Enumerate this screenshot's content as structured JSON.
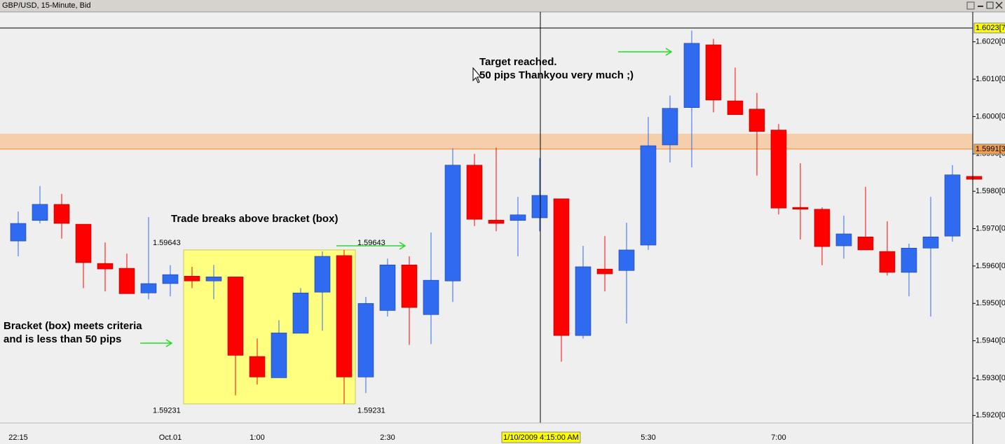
{
  "chart_data": {
    "type": "candlestick",
    "title": "GBP/USD, 15-Minute, Bid",
    "categories": [
      "22:15",
      null,
      null,
      null,
      null,
      null,
      null,
      "Oct.01",
      null,
      null,
      null,
      "1:00",
      null,
      null,
      null,
      null,
      null,
      "2:30",
      null,
      null,
      null,
      null,
      null,
      null,
      null,
      null,
      null,
      null,
      null,
      "5:30",
      null,
      null,
      null,
      null,
      null,
      "7:00",
      null,
      null,
      null,
      null,
      null,
      null,
      null,
      null,
      null
    ],
    "open": [
      1.59667,
      1.59722,
      1.59765,
      1.59712,
      1.59607,
      1.59594,
      1.59528,
      1.59553,
      1.59573,
      1.5956,
      1.59571,
      1.59358,
      1.59301,
      1.5942,
      1.5953,
      1.59628,
      1.59303,
      1.59481,
      1.59603,
      1.5947,
      1.5956,
      1.5987,
      1.59723,
      1.59722,
      1.59729,
      1.5978,
      1.59414,
      1.59592,
      1.59588,
      1.59656,
      1.59924,
      1.60024,
      1.60192,
      1.60042,
      1.6002,
      1.59964,
      1.59757,
      1.59752,
      1.59654,
      1.59678,
      1.59639,
      1.59583,
      1.59648,
      1.5968,
      1.5984
    ],
    "high": [
      1.59746,
      1.59814,
      1.59793,
      1.59712,
      1.59663,
      1.59633,
      1.59731,
      1.59602,
      1.59598,
      1.59603,
      1.59571,
      1.59406,
      1.59455,
      1.59541,
      1.59639,
      1.59643,
      1.59517,
      1.5962,
      1.59626,
      1.5969,
      1.59915,
      1.599,
      1.59917,
      1.59785,
      1.59889,
      1.5978,
      1.59654,
      1.5968,
      1.59716,
      1.59999,
      1.60056,
      1.6023,
      1.60208,
      1.60131,
      1.60063,
      1.5998,
      1.59875,
      1.59757,
      1.59735,
      1.59812,
      1.5972,
      1.5966,
      1.59785,
      1.5987,
      1.5984
    ],
    "low": [
      1.59626,
      1.59714,
      1.59673,
      1.59541,
      1.59532,
      1.59526,
      1.59511,
      1.59519,
      1.59541,
      1.59511,
      1.59254,
      1.59283,
      1.59301,
      1.5942,
      1.59427,
      1.59231,
      1.5926,
      1.59465,
      1.59389,
      1.59391,
      1.59504,
      1.59707,
      1.59693,
      1.59626,
      1.59693,
      1.59344,
      1.59406,
      1.59532,
      1.59446,
      1.59643,
      1.59877,
      1.59864,
      1.60011,
      1.60005,
      1.59842,
      1.59738,
      1.59671,
      1.59602,
      1.5962,
      1.59643,
      1.59575,
      1.59519,
      1.59465,
      1.59665,
      1.59832
    ],
    "close": [
      1.59714,
      1.59765,
      1.59714,
      1.59609,
      1.59592,
      1.59526,
      1.59553,
      1.59577,
      1.5956,
      1.59571,
      1.59361,
      1.59303,
      1.59421,
      1.59528,
      1.59626,
      1.59303,
      1.595,
      1.59603,
      1.59489,
      1.59562,
      1.5987,
      1.59725,
      1.59714,
      1.59737,
      1.59789,
      1.59414,
      1.59598,
      1.59579,
      1.59643,
      1.59922,
      1.60022,
      1.60196,
      1.60044,
      1.60005,
      1.5996,
      1.59755,
      1.59752,
      1.59652,
      1.59686,
      1.59643,
      1.59583,
      1.59648,
      1.59678,
      1.59844,
      1.59832
    ],
    "up_color": "#2f6bf0",
    "down_color": "#ff0000",
    "ylim": [
      1.5918,
      1.6028
    ],
    "yticks": [
      {
        "value": 1.592,
        "label": "1.5920[0]"
      },
      {
        "value": 1.593,
        "label": "1.5930[0]"
      },
      {
        "value": 1.594,
        "label": "1.5940[0]"
      },
      {
        "value": 1.595,
        "label": "1.5950[0]"
      },
      {
        "value": 1.596,
        "label": "1.5960[0]"
      },
      {
        "value": 1.597,
        "label": "1.5970[0]"
      },
      {
        "value": 1.598,
        "label": "1.5980[0]"
      },
      {
        "value": 1.599,
        "label": "1.5990[0]"
      },
      {
        "value": 1.6,
        "label": "1.6000[0]"
      },
      {
        "value": 1.601,
        "label": "1.6010[0]"
      },
      {
        "value": 1.602,
        "label": "1.6020[0]"
      }
    ],
    "grid": false,
    "zone": {
      "low": 1.59913,
      "high": 1.59954,
      "label": "1.5991[3"
    },
    "last_price": {
      "value": 1.60237,
      "label": "1.6023[7"
    },
    "bracket": {
      "high": 1.59643,
      "low": 1.59231
    },
    "crosshair_label": "1/10/2009 4:15:00 AM",
    "annotations": [
      "Target reached.",
      "50 pips Thankyou very much ;)",
      "Trade breaks above bracket (box)",
      "Bracket (box) meets criteria",
      "and is less than 50 pips"
    ]
  }
}
